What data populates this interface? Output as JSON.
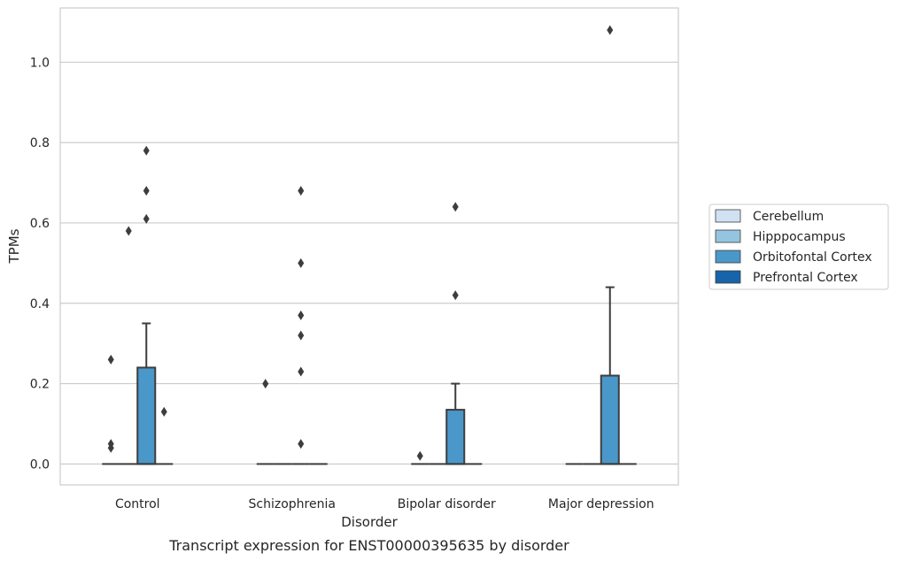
{
  "chart_data": {
    "type": "box",
    "title": "",
    "caption": "Transcript expression for ENST00000395635 by disorder",
    "xlabel": "Disorder",
    "ylabel": "TPMs",
    "ylim": [
      -0.052,
      1.135
    ],
    "yticks": [
      0.0,
      0.2,
      0.4,
      0.6,
      0.8,
      1.0
    ],
    "ytick_labels": [
      "0.0",
      "0.2",
      "0.4",
      "0.6",
      "0.8",
      "1.0"
    ],
    "grid": "horizontal",
    "legend_placement": "right-outside",
    "categories": [
      "Control",
      "Schizophrenia",
      "Bipolar disorder",
      "Major depression"
    ],
    "series": [
      {
        "name": "Cerebellum",
        "color": "#d0e1f2",
        "boxes": [
          {
            "q1": 0,
            "median": 0,
            "q3": 0,
            "whisker_low": 0,
            "whisker_high": 0,
            "outliers": [
              0.26,
              0.05,
              0.04
            ]
          },
          {
            "q1": 0,
            "median": 0,
            "q3": 0,
            "whisker_low": 0,
            "whisker_high": 0,
            "outliers": [
              0.2
            ]
          },
          {
            "q1": 0,
            "median": 0,
            "q3": 0,
            "whisker_low": 0,
            "whisker_high": 0,
            "outliers": [
              0.02
            ]
          },
          {
            "q1": 0,
            "median": 0,
            "q3": 0,
            "whisker_low": 0,
            "whisker_high": 0,
            "outliers": []
          }
        ]
      },
      {
        "name": "Hipppocampus",
        "color": "#94c4df",
        "boxes": [
          {
            "q1": 0,
            "median": 0,
            "q3": 0,
            "whisker_low": 0,
            "whisker_high": 0,
            "outliers": [
              0.58
            ]
          },
          {
            "q1": 0,
            "median": 0,
            "q3": 0,
            "whisker_low": 0,
            "whisker_high": 0,
            "outliers": []
          },
          {
            "q1": 0,
            "median": 0,
            "q3": 0,
            "whisker_low": 0,
            "whisker_high": 0,
            "outliers": []
          },
          {
            "q1": 0,
            "median": 0,
            "q3": 0,
            "whisker_low": 0,
            "whisker_high": 0,
            "outliers": []
          }
        ]
      },
      {
        "name": "Orbitofontal Cortex",
        "color": "#4a98c9",
        "boxes": [
          {
            "q1": 0,
            "median": 0,
            "q3": 0.24,
            "whisker_low": 0,
            "whisker_high": 0.35,
            "outliers": [
              0.61,
              0.68,
              0.78
            ]
          },
          {
            "q1": 0,
            "median": 0,
            "q3": 0,
            "whisker_low": 0,
            "whisker_high": 0,
            "outliers": [
              0.05,
              0.23,
              0.32,
              0.37,
              0.5,
              0.68
            ]
          },
          {
            "q1": 0,
            "median": 0,
            "q3": 0.135,
            "whisker_low": 0,
            "whisker_high": 0.2,
            "outliers": [
              0.42,
              0.64
            ]
          },
          {
            "q1": 0,
            "median": 0,
            "q3": 0.22,
            "whisker_low": 0,
            "whisker_high": 0.44,
            "outliers": [
              1.08
            ]
          }
        ]
      },
      {
        "name": "Prefrontal Cortex",
        "color": "#1764ab",
        "boxes": [
          {
            "q1": 0,
            "median": 0,
            "q3": 0,
            "whisker_low": 0,
            "whisker_high": 0,
            "outliers": [
              0.13
            ]
          },
          {
            "q1": 0,
            "median": 0,
            "q3": 0,
            "whisker_low": 0,
            "whisker_high": 0,
            "outliers": []
          },
          {
            "q1": 0,
            "median": 0,
            "q3": 0,
            "whisker_low": 0,
            "whisker_high": 0,
            "outliers": []
          },
          {
            "q1": 0,
            "median": 0,
            "q3": 0,
            "whisker_low": 0,
            "whisker_high": 0,
            "outliers": []
          }
        ]
      }
    ],
    "colors": {
      "grid": "#cccccc",
      "frame": "#cccccc",
      "box_edge": "#3d3d3d",
      "outlier": "#3d3d3d",
      "text": "#262626"
    }
  }
}
